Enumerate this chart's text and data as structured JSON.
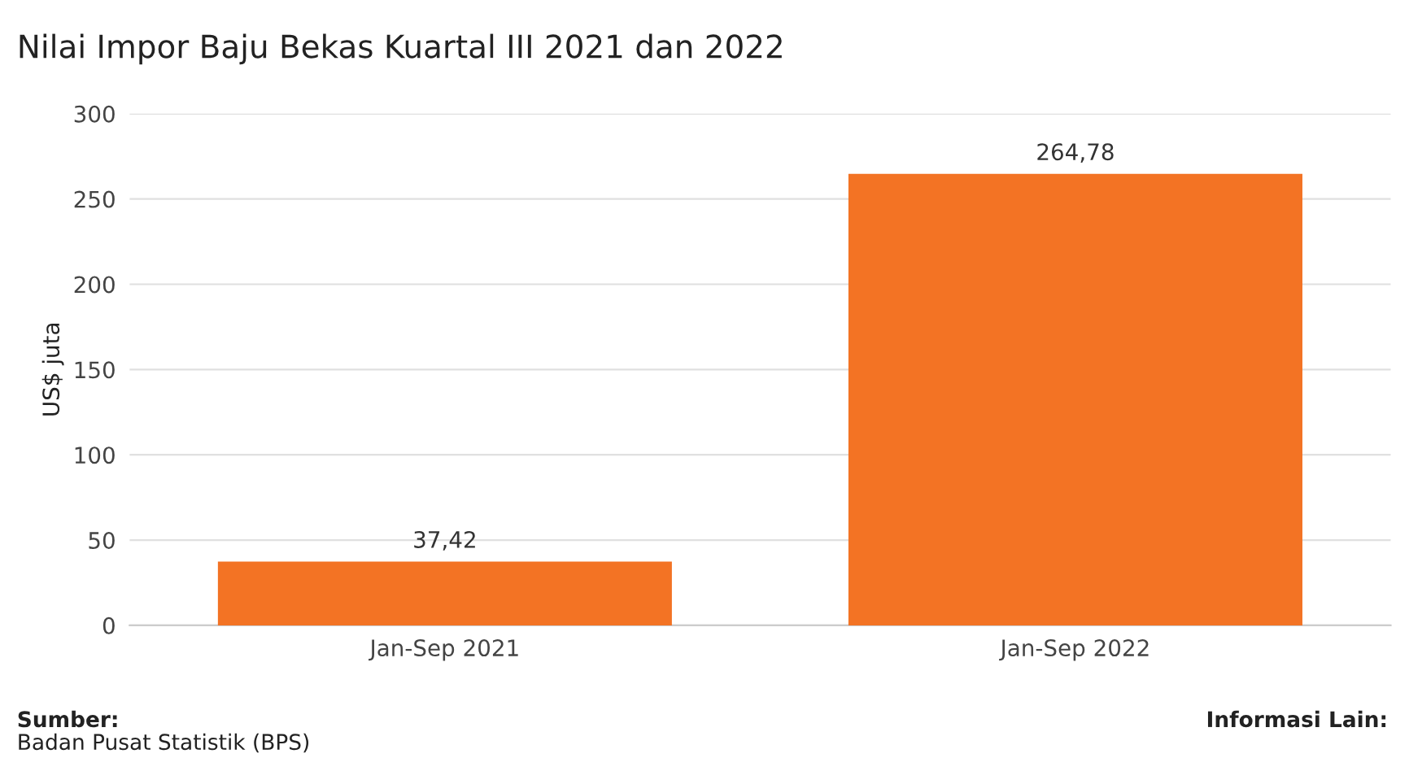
{
  "chart_data": {
    "type": "bar",
    "title": "Nilai Impor Baju Bekas Kuartal III 2021 dan 2022",
    "ylabel": "US$ juta",
    "categories": [
      "Jan-Sep 2021",
      "Jan-Sep 2022"
    ],
    "values": [
      37.42,
      264.78
    ],
    "value_labels": [
      "37,42",
      "264,78"
    ],
    "color": "#f37324",
    "ylim": [
      0,
      300
    ],
    "yticks": [
      0,
      50,
      100,
      150,
      200,
      250,
      300
    ],
    "grid": "y",
    "annotations": [
      "Sumber:",
      "Badan Pusat Statistik (BPS)",
      "Informasi Lain:"
    ]
  }
}
